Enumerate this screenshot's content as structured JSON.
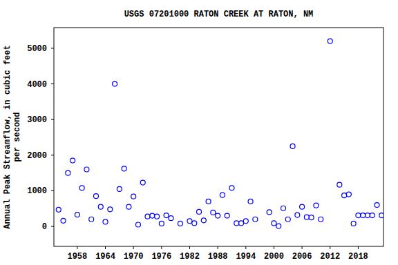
{
  "chart_data": {
    "type": "scatter",
    "title": "USGS 07201000 RATON CREEK AT RATON, NM",
    "y_label": "Annual Peak Streamflow, in cubic feet\nper second",
    "x": [
      1954,
      1955,
      1956,
      1957,
      1958,
      1959,
      1960,
      1961,
      1962,
      1963,
      1964,
      1965,
      1966,
      1967,
      1968,
      1969,
      1970,
      1971,
      1972,
      1973,
      1974,
      1975,
      1976,
      1977,
      1978,
      1980,
      1982,
      1983,
      1984,
      1985,
      1986,
      1987,
      1988,
      1989,
      1990,
      1991,
      1992,
      1993,
      1994,
      1995,
      1996,
      1999,
      2000,
      2001,
      2002,
      2003,
      2004,
      2005,
      2006,
      2007,
      2008,
      2009,
      2010,
      2012,
      2014,
      2015,
      2016,
      2017,
      2018,
      2019,
      2020,
      2021,
      2022,
      2023
    ],
    "values": [
      470,
      160,
      1500,
      1850,
      330,
      1080,
      1600,
      200,
      850,
      550,
      130,
      480,
      4000,
      1050,
      1620,
      550,
      840,
      50,
      1230,
      280,
      300,
      280,
      80,
      310,
      230,
      80,
      150,
      90,
      410,
      170,
      700,
      390,
      300,
      880,
      300,
      1080,
      90,
      90,
      150,
      700,
      200,
      400,
      90,
      10,
      510,
      200,
      2250,
      320,
      550,
      260,
      250,
      590,
      200,
      5200,
      1170,
      870,
      900,
      80,
      310,
      310,
      310,
      310,
      600,
      310
    ],
    "color": "#0000ff",
    "marker": "circle-open",
    "xlim": [
      1953,
      2023.4
    ],
    "xticks": [
      1958,
      1964,
      1970,
      1976,
      1982,
      1988,
      1994,
      2000,
      2006,
      2012,
      2018
    ],
    "ylim": [
      -560,
      5580
    ],
    "yticks": [
      0,
      1000,
      2000,
      3000,
      4000,
      5000
    ],
    "grid": false
  }
}
